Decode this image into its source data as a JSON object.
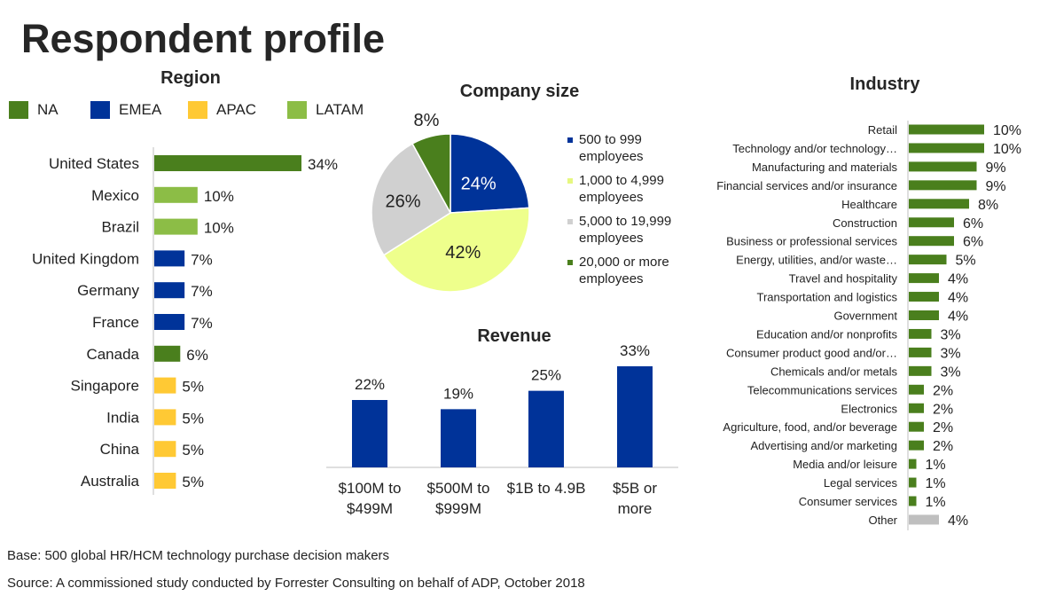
{
  "title": "Respondent profile",
  "colors": {
    "na": "#4a7f1d",
    "emea": "#003399",
    "apac": "#ffc934",
    "latam": "#8cbd46",
    "other": "#bfbfbf",
    "pie_green": "#4a7f1d",
    "pie_blue": "#003399",
    "pie_yellow": "#eeff8c",
    "pie_gray": "#d0d0d0"
  },
  "region": {
    "title": "Region",
    "legend": [
      {
        "label": "NA",
        "color": "#4a7f1d"
      },
      {
        "label": "EMEA",
        "color": "#003399"
      },
      {
        "label": "APAC",
        "color": "#ffc934"
      },
      {
        "label": "LATAM",
        "color": "#8cbd46"
      }
    ]
  },
  "company_size": {
    "title": "Company size",
    "legend": [
      "500 to 999 employees",
      "1,000 to 4,999 employees",
      "5,000 to 19,999 employees",
      "20,000 or more employees"
    ]
  },
  "revenue": {
    "title": "Revenue"
  },
  "industry": {
    "title": "Industry"
  },
  "footer": {
    "base": "Base: 500 global HR/HCM technology purchase decision makers",
    "source": "Source: A commissioned study conducted by Forrester Consulting on behalf of ADP, October 2018"
  },
  "chart_data": [
    {
      "type": "bar",
      "orientation": "horizontal",
      "title": "Region",
      "categories": [
        "United States",
        "Mexico",
        "Brazil",
        "United Kingdom",
        "Germany",
        "France",
        "Canada",
        "Singapore",
        "India",
        "China",
        "Australia"
      ],
      "values": [
        34,
        10,
        10,
        7,
        7,
        7,
        6,
        5,
        5,
        5,
        5
      ],
      "labels": [
        "34%",
        "10%",
        "10%",
        "7%",
        "7%",
        "7%",
        "6%",
        "5%",
        "5%",
        "5%",
        "5%"
      ],
      "region": [
        "NA",
        "LATAM",
        "LATAM",
        "EMEA",
        "EMEA",
        "EMEA",
        "NA",
        "APAC",
        "APAC",
        "APAC",
        "APAC"
      ]
    },
    {
      "type": "pie",
      "title": "Company size",
      "categories": [
        "500 to 999 employees",
        "1,000 to 4,999 employees",
        "5,000 to 19,999 employees",
        "20,000 or more employees"
      ],
      "values": [
        24,
        42,
        26,
        8
      ],
      "labels": [
        "24%",
        "42%",
        "26%",
        "8%"
      ],
      "colors": [
        "#003399",
        "#eeff8c",
        "#d0d0d0",
        "#4a7f1d"
      ]
    },
    {
      "type": "bar",
      "title": "Revenue",
      "categories": [
        "$100M to $499M",
        "$500M to $999M",
        "$1B to 4.9B",
        "$5B or more"
      ],
      "category_lines": [
        [
          "$100M to",
          "$499M"
        ],
        [
          "$500M to",
          "$999M"
        ],
        [
          "$1B to 4.9B"
        ],
        [
          "$5B or",
          "more"
        ]
      ],
      "values": [
        22,
        19,
        25,
        33
      ],
      "labels": [
        "22%",
        "19%",
        "25%",
        "33%"
      ]
    },
    {
      "type": "bar",
      "orientation": "horizontal",
      "title": "Industry",
      "categories": [
        "Retail",
        "Technology and/or technology…",
        "Manufacturing and materials",
        "Financial services and/or insurance",
        "Healthcare",
        "Construction",
        "Business or professional services",
        "Energy, utilities, and/or waste…",
        "Travel and hospitality",
        "Transportation and logistics",
        "Government",
        "Education and/or nonprofits",
        "Consumer product good and/or…",
        "Chemicals and/or metals",
        "Telecommunications services",
        "Electronics",
        "Agriculture, food, and/or beverage",
        "Advertising and/or marketing",
        "Media and/or leisure",
        "Legal services",
        "Consumer services",
        "Other"
      ],
      "values": [
        10,
        10,
        9,
        9,
        8,
        6,
        6,
        5,
        4,
        4,
        4,
        3,
        3,
        3,
        2,
        2,
        2,
        2,
        1,
        1,
        1,
        4
      ],
      "labels": [
        "10%",
        "10%",
        "9%",
        "9%",
        "8%",
        "6%",
        "6%",
        "5%",
        "4%",
        "4%",
        "4%",
        "3%",
        "3%",
        "3%",
        "2%",
        "2%",
        "2%",
        "2%",
        "1%",
        "1%",
        "1%",
        "4%"
      ]
    }
  ]
}
